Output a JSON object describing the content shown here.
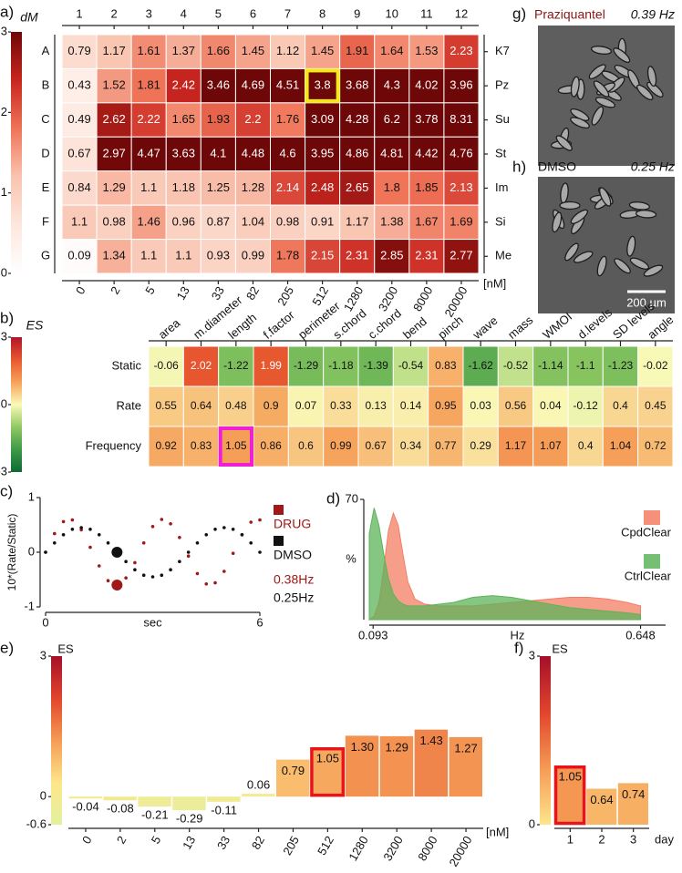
{
  "chart_data": [
    {
      "type": "heatmap",
      "panel": "a)",
      "colorbar_label": "dM",
      "clim": [
        0,
        3
      ],
      "cticks": [
        0,
        1,
        2,
        3
      ],
      "colormap": [
        "#ffffff",
        "#fde7de",
        "#f9c4b0",
        "#ef7458",
        "#c8261f",
        "#6e0707"
      ],
      "column_labels": [
        1,
        2,
        3,
        4,
        5,
        6,
        7,
        8,
        9,
        10,
        11,
        12
      ],
      "row_labels": [
        "A",
        "B",
        "C",
        "D",
        "E",
        "F",
        "G"
      ],
      "right_labels": [
        "K7",
        "Pz",
        "Su",
        "St",
        "Im",
        "Si",
        "Me"
      ],
      "bottom_labels": [
        0,
        2,
        5,
        13,
        33,
        82,
        205,
        512,
        1280,
        3200,
        8000,
        20000
      ],
      "unit": "[nM]",
      "values": [
        [
          0.79,
          1.17,
          1.61,
          1.37,
          1.66,
          1.45,
          1.12,
          1.45,
          1.91,
          1.64,
          1.53,
          2.23
        ],
        [
          0.43,
          1.52,
          1.81,
          2.42,
          3.46,
          4.69,
          4.51,
          3.8,
          3.68,
          4.3,
          4.02,
          3.96
        ],
        [
          0.49,
          2.62,
          2.22,
          1.65,
          1.93,
          2.2,
          1.76,
          3.09,
          4.28,
          6.2,
          3.78,
          8.31
        ],
        [
          0.67,
          2.97,
          4.47,
          3.63,
          4.1,
          4.48,
          4.6,
          3.95,
          4.86,
          4.81,
          4.42,
          4.76
        ],
        [
          0.84,
          1.29,
          1.1,
          1.18,
          1.25,
          1.28,
          2.14,
          2.48,
          2.65,
          1.8,
          1.85,
          2.13
        ],
        [
          1.1,
          0.98,
          1.46,
          0.96,
          0.87,
          1.04,
          0.98,
          0.91,
          1.17,
          1.38,
          1.67,
          1.69
        ],
        [
          0.09,
          1.34,
          1.1,
          1.1,
          0.93,
          0.99,
          1.78,
          2.15,
          2.31,
          2.85,
          2.31,
          2.77
        ]
      ],
      "highlight_cell": [
        1,
        7
      ],
      "highlight_color": "#f4e816"
    },
    {
      "type": "heatmap",
      "panel": "b)",
      "colorbar_label": "ES",
      "clim": [
        -3,
        3
      ],
      "cticks": [
        3,
        0,
        -3
      ],
      "colormap": [
        "#0d6b33",
        "#3f9a48",
        "#8fc963",
        "#fafab8",
        "#f6a25a",
        "#e8572f",
        "#b2142a"
      ],
      "column_labels": [
        "area",
        "m.diameter",
        "length",
        "f.factor",
        "perimeter",
        "s.chord",
        "c.chord",
        "bend",
        "pinch",
        "wave",
        "mass",
        "WMOI",
        "d.levels",
        "SD levels",
        "angle"
      ],
      "row_labels": [
        "Static",
        "Rate",
        "Frequency"
      ],
      "values": [
        [
          -0.06,
          2.02,
          -1.22,
          1.99,
          -1.29,
          -1.18,
          -1.39,
          -0.54,
          0.83,
          -1.62,
          -0.52,
          -1.14,
          -1.1,
          -1.23,
          -0.02
        ],
        [
          0.55,
          0.64,
          0.48,
          0.9,
          0.07,
          0.33,
          0.13,
          0.14,
          0.95,
          0.03,
          0.56,
          0.04,
          -0.12,
          0.4,
          0.45
        ],
        [
          0.92,
          0.83,
          1.05,
          0.86,
          0.6,
          0.99,
          0.67,
          0.34,
          0.77,
          0.29,
          1.17,
          1.07,
          0.4,
          1.04,
          0.72
        ]
      ],
      "highlight_cell": [
        2,
        2
      ],
      "highlight_color": "#f01fd6"
    },
    {
      "type": "line",
      "panel": "c)",
      "y_label": "10*(Rate/Static)",
      "x_label": "sec",
      "xlim": [
        0,
        6
      ],
      "xticks": [
        0,
        6
      ],
      "ylim": [
        -1,
        1
      ],
      "yticks": [
        -1,
        0,
        1
      ],
      "highlight_index": 8,
      "x": [
        0,
        0.25,
        0.5,
        0.75,
        1,
        1.25,
        1.5,
        1.75,
        2,
        2.25,
        2.5,
        2.75,
        3,
        3.25,
        3.5,
        3.75,
        4,
        4.25,
        4.5,
        4.75,
        5,
        5.25,
        5.5,
        5.75,
        6
      ],
      "series": [
        {
          "name": "DRUG",
          "color": "#a01818",
          "freq_label": "0.38Hz",
          "values": [
            0,
            0.34,
            0.56,
            0.59,
            0.41,
            0.09,
            -0.25,
            -0.52,
            -0.6,
            -0.47,
            -0.19,
            0.17,
            0.47,
            0.6,
            0.52,
            0.27,
            -0.07,
            -0.39,
            -0.58,
            -0.56,
            -0.35,
            -0.02,
            0.32,
            0.55,
            0.59
          ]
        },
        {
          "name": "DMSO",
          "color": "#111111",
          "freq_label": "0.25Hz",
          "values": [
            0,
            0.17,
            0.32,
            0.42,
            0.45,
            0.42,
            0.32,
            0.17,
            0,
            -0.17,
            -0.32,
            -0.42,
            -0.45,
            -0.42,
            -0.32,
            -0.17,
            0,
            0.17,
            0.32,
            0.42,
            0.45,
            0.42,
            0.32,
            0.17,
            0
          ]
        }
      ]
    },
    {
      "type": "area",
      "panel": "d)",
      "y_label": "%",
      "x_label": "Hz",
      "xlim": [
        0.085,
        0.7
      ],
      "xticks": [
        0.093,
        0.648
      ],
      "ylim": [
        0,
        70
      ],
      "yticks": [
        70
      ],
      "x": [
        0.085,
        0.095,
        0.105,
        0.115,
        0.125,
        0.135,
        0.145,
        0.155,
        0.165,
        0.18,
        0.2,
        0.23,
        0.26,
        0.3,
        0.34,
        0.38,
        0.42,
        0.46,
        0.5,
        0.54,
        0.58,
        0.62,
        0.648
      ],
      "series": [
        {
          "name": "CpdClear",
          "color": "#f47d64",
          "values": [
            0,
            2,
            10,
            30,
            52,
            62,
            55,
            38,
            22,
            12,
            9,
            8,
            8,
            8,
            9,
            10,
            11,
            12,
            13,
            13,
            12,
            10,
            8
          ]
        },
        {
          "name": "CtrlClear",
          "color": "#5eb35a",
          "values": [
            50,
            65,
            55,
            38,
            24,
            15,
            11,
            9,
            8,
            8,
            8,
            9,
            10,
            13,
            14,
            13,
            11,
            9,
            7,
            6,
            5,
            4,
            3
          ]
        }
      ]
    },
    {
      "type": "bar",
      "panel": "e)",
      "colorbar_label": "ES",
      "ylim": [
        -0.6,
        3
      ],
      "yticks": [
        3,
        0,
        -0.6
      ],
      "colormap": [
        "#e3f0a0",
        "#fde68a",
        "#f59b55",
        "#e2452c",
        "#a50f2a"
      ],
      "categories": [
        0,
        2,
        5,
        13,
        33,
        82,
        205,
        512,
        1280,
        3200,
        8000,
        20000
      ],
      "unit": "[nM]",
      "values": [
        -0.04,
        -0.08,
        -0.21,
        -0.29,
        -0.11,
        0.06,
        0.79,
        1.05,
        1.3,
        1.29,
        1.43,
        1.27
      ],
      "value_labels": [
        "-0.04",
        "-0.08",
        "-0.21",
        "-0.29",
        "-0.11",
        "0.06",
        "0.79",
        "1.05",
        "1.30",
        "1.29",
        "1.43",
        "1.27"
      ],
      "highlight_index": 7,
      "highlight_color": "#e8141b"
    },
    {
      "type": "bar",
      "panel": "f)",
      "colorbar_label": "ES",
      "ylim": [
        0,
        3
      ],
      "yticks": [
        3,
        0
      ],
      "colormap": [
        "#fde68a",
        "#f59b55",
        "#e2452c",
        "#a50f2a"
      ],
      "categories": [
        1,
        2,
        3
      ],
      "unit": "day",
      "values": [
        1.05,
        0.64,
        0.74
      ],
      "value_labels": [
        "1.05",
        "0.64",
        "0.74"
      ],
      "highlight_index": 0,
      "highlight_color": "#e8141b"
    }
  ],
  "images": [
    {
      "panel": "g)",
      "title": "Praziquantel",
      "rate": "0.39 Hz"
    },
    {
      "panel": "h)",
      "title": "DMSO",
      "rate": "0.25 Hz",
      "scale_bar": "200 µm"
    }
  ]
}
